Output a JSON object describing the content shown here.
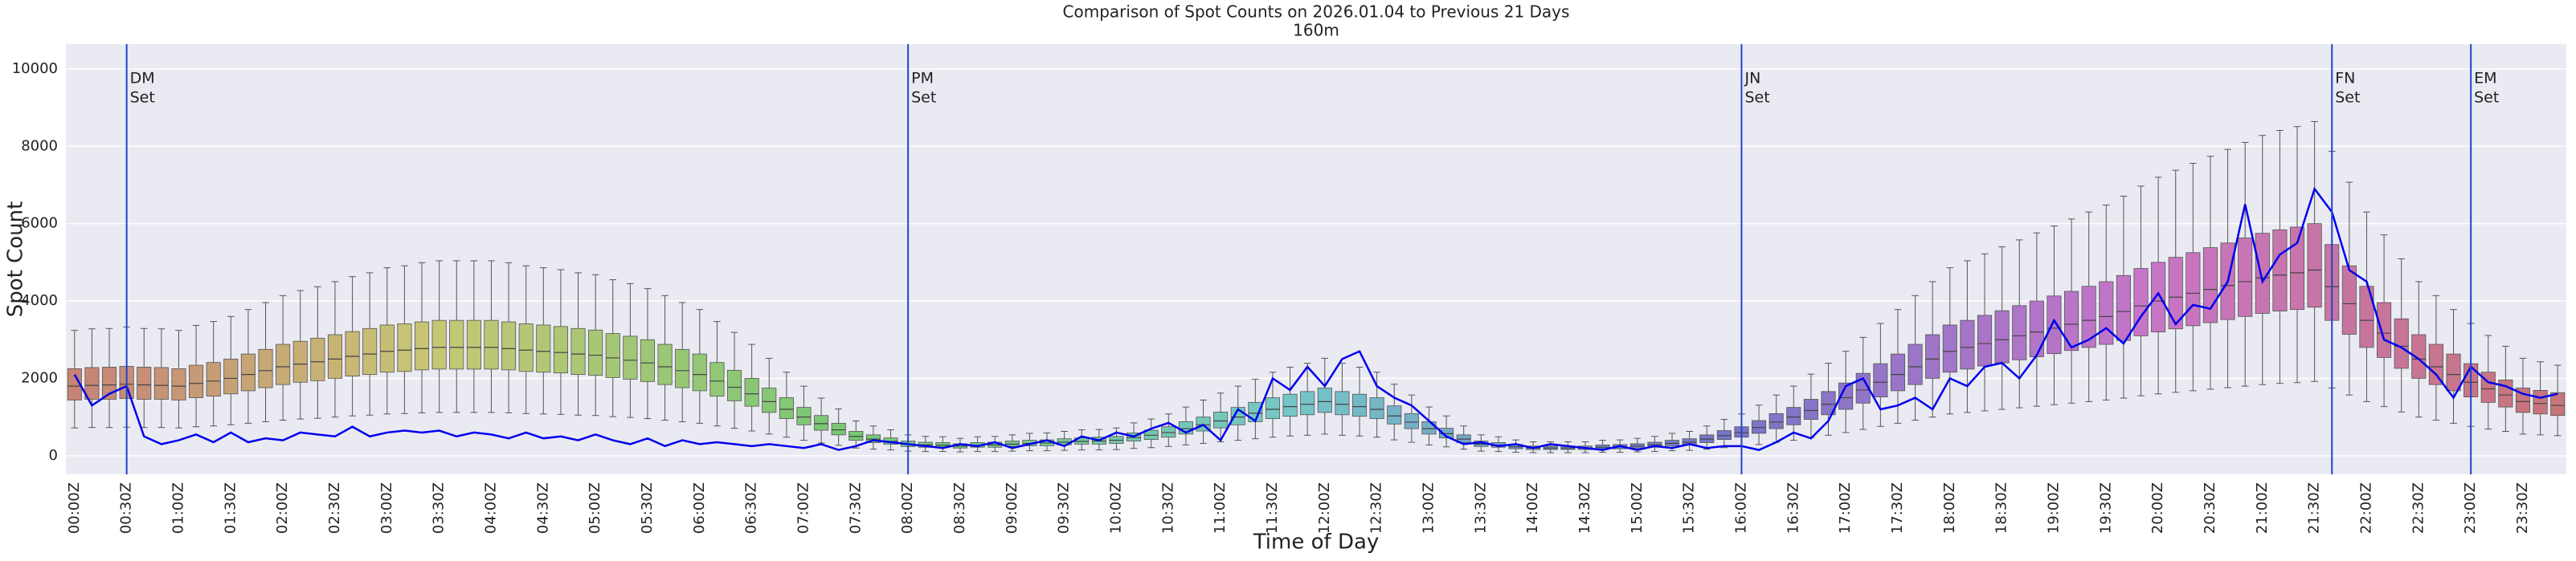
{
  "chart_data": {
    "type": "boxplot",
    "title": "Comparison of Spot Counts on 2026.01.04 to Previous 21 Days",
    "subtitle": "160m",
    "xlabel": "Time of Day",
    "ylabel": "Spot Count",
    "categories": [
      "00:00Z",
      null,
      null,
      "00:30Z",
      null,
      null,
      "01:00Z",
      null,
      null,
      "01:30Z",
      null,
      null,
      "02:00Z",
      null,
      null,
      "02:30Z",
      null,
      null,
      "03:00Z",
      null,
      null,
      "03:30Z",
      null,
      null,
      "04:00Z",
      null,
      null,
      "04:30Z",
      null,
      null,
      "05:00Z",
      null,
      null,
      "05:30Z",
      null,
      null,
      "06:00Z",
      null,
      null,
      "06:30Z",
      null,
      null,
      "07:00Z",
      null,
      null,
      "07:30Z",
      null,
      null,
      "08:00Z",
      null,
      null,
      "08:30Z",
      null,
      null,
      "09:00Z",
      null,
      null,
      "09:30Z",
      null,
      null,
      "10:00Z",
      null,
      null,
      "10:30Z",
      null,
      null,
      "11:00Z",
      null,
      null,
      "11:30Z",
      null,
      null,
      "12:00Z",
      null,
      null,
      "12:30Z",
      null,
      null,
      "13:00Z",
      null,
      null,
      "13:30Z",
      null,
      null,
      "14:00Z",
      null,
      null,
      "14:30Z",
      null,
      null,
      "15:00Z",
      null,
      null,
      "15:30Z",
      null,
      null,
      "16:00Z",
      null,
      null,
      "16:30Z",
      null,
      null,
      "17:00Z",
      null,
      null,
      "17:30Z",
      null,
      null,
      "18:00Z",
      null,
      null,
      "18:30Z",
      null,
      null,
      "19:00Z",
      null,
      null,
      "19:30Z",
      null,
      null,
      "20:00Z",
      null,
      null,
      "20:30Z",
      null,
      null,
      "21:00Z",
      null,
      null,
      "21:30Z",
      null,
      null,
      "22:00Z",
      null,
      null,
      "22:30Z",
      null,
      null,
      "23:00Z",
      null,
      null,
      "23:30Z",
      null,
      null
    ],
    "boxes": {
      "whislo": [
        720,
        730,
        730,
        740,
        730,
        730,
        720,
        750,
        770,
        800,
        840,
        880,
        920,
        950,
        970,
        1000,
        1030,
        1050,
        1080,
        1090,
        1110,
        1120,
        1120,
        1120,
        1120,
        1110,
        1090,
        1080,
        1070,
        1050,
        1040,
        1010,
        990,
        960,
        920,
        880,
        840,
        770,
        710,
        640,
        560,
        480,
        400,
        330,
        270,
        200,
        170,
        150,
        120,
        110,
        110,
        100,
        110,
        110,
        120,
        130,
        130,
        140,
        150,
        150,
        160,
        190,
        210,
        240,
        280,
        320,
        360,
        400,
        440,
        480,
        510,
        530,
        560,
        530,
        510,
        480,
        410,
        350,
        280,
        230,
        170,
        120,
        110,
        90,
        80,
        80,
        80,
        80,
        90,
        90,
        100,
        110,
        130,
        140,
        170,
        210,
        240,
        290,
        350,
        400,
        470,
        530,
        600,
        680,
        760,
        840,
        920,
        1000,
        1080,
        1120,
        1160,
        1200,
        1240,
        1280,
        1320,
        1360,
        1400,
        1440,
        1490,
        1550,
        1600,
        1640,
        1680,
        1720,
        1760,
        1800,
        1840,
        1870,
        1890,
        1920,
        1750,
        1570,
        1400,
        1270,
        1130,
        1000,
        920,
        840,
        760,
        690,
        630,
        560,
        540,
        520
      ],
      "q1": [
        1440,
        1460,
        1460,
        1480,
        1460,
        1460,
        1440,
        1500,
        1540,
        1600,
        1680,
        1760,
        1840,
        1900,
        1940,
        2000,
        2060,
        2100,
        2160,
        2180,
        2220,
        2240,
        2240,
        2240,
        2240,
        2220,
        2180,
        2160,
        2140,
        2100,
        2080,
        2020,
        1980,
        1920,
        1840,
        1760,
        1680,
        1540,
        1420,
        1280,
        1120,
        960,
        800,
        660,
        540,
        400,
        340,
        300,
        240,
        220,
        220,
        200,
        220,
        220,
        240,
        260,
        260,
        280,
        300,
        300,
        320,
        380,
        420,
        480,
        560,
        640,
        720,
        800,
        880,
        960,
        1020,
        1060,
        1120,
        1060,
        1020,
        960,
        820,
        700,
        560,
        460,
        340,
        240,
        220,
        180,
        160,
        160,
        160,
        160,
        180,
        180,
        200,
        220,
        260,
        280,
        340,
        420,
        480,
        580,
        700,
        800,
        940,
        1060,
        1200,
        1360,
        1520,
        1680,
        1840,
        2000,
        2160,
        2240,
        2320,
        2400,
        2480,
        2560,
        2640,
        2720,
        2800,
        2880,
        2980,
        3100,
        3200,
        3280,
        3360,
        3440,
        3520,
        3600,
        3680,
        3740,
        3780,
        3840,
        3500,
        3140,
        2800,
        2540,
        2260,
        2000,
        1840,
        1680,
        1520,
        1380,
        1260,
        1120,
        1080,
        1040
      ],
      "median": [
        1800,
        1820,
        1830,
        1850,
        1830,
        1820,
        1800,
        1870,
        1930,
        2000,
        2100,
        2200,
        2300,
        2370,
        2430,
        2500,
        2570,
        2630,
        2700,
        2730,
        2770,
        2800,
        2800,
        2800,
        2800,
        2770,
        2730,
        2700,
        2670,
        2630,
        2600,
        2530,
        2470,
        2400,
        2300,
        2200,
        2100,
        1930,
        1770,
        1600,
        1400,
        1200,
        1000,
        830,
        670,
        500,
        430,
        370,
        300,
        280,
        270,
        250,
        270,
        280,
        300,
        320,
        330,
        350,
        370,
        380,
        400,
        470,
        530,
        600,
        700,
        800,
        900,
        1000,
        1100,
        1200,
        1270,
        1330,
        1400,
        1330,
        1270,
        1200,
        1030,
        870,
        700,
        570,
        430,
        300,
        270,
        230,
        200,
        200,
        200,
        200,
        220,
        230,
        250,
        280,
        320,
        350,
        430,
        520,
        600,
        730,
        870,
        1000,
        1170,
        1330,
        1500,
        1700,
        1900,
        2100,
        2300,
        2500,
        2700,
        2800,
        2900,
        3000,
        3100,
        3200,
        3300,
        3400,
        3500,
        3600,
        3730,
        3870,
        4000,
        4100,
        4200,
        4300,
        4400,
        4500,
        4600,
        4670,
        4730,
        4800,
        4370,
        3930,
        3500,
        3170,
        2830,
        2500,
        2300,
        2100,
        1900,
        1730,
        1570,
        1400,
        1350,
        1300
      ],
      "q3": [
        2250,
        2280,
        2290,
        2310,
        2290,
        2280,
        2250,
        2340,
        2410,
        2500,
        2630,
        2750,
        2880,
        2960,
        3040,
        3130,
        3210,
        3290,
        3380,
        3410,
        3460,
        3500,
        3500,
        3500,
        3500,
        3460,
        3410,
        3380,
        3340,
        3290,
        3250,
        3160,
        3090,
        3000,
        2880,
        2750,
        2630,
        2410,
        2210,
        2000,
        1750,
        1500,
        1250,
        1040,
        840,
        630,
        540,
        460,
        380,
        350,
        340,
        310,
        340,
        350,
        380,
        400,
        410,
        440,
        460,
        480,
        500,
        590,
        660,
        750,
        880,
        1000,
        1130,
        1250,
        1380,
        1500,
        1590,
        1660,
        1750,
        1660,
        1590,
        1500,
        1290,
        1090,
        880,
        710,
        540,
        380,
        340,
        290,
        250,
        250,
        250,
        250,
        280,
        290,
        310,
        350,
        400,
        440,
        540,
        650,
        750,
        910,
        1090,
        1250,
        1460,
        1660,
        1880,
        2130,
        2380,
        2630,
        2880,
        3130,
        3380,
        3500,
        3630,
        3750,
        3880,
        4000,
        4130,
        4250,
        4380,
        4500,
        4660,
        4840,
        5000,
        5130,
        5250,
        5380,
        5500,
        5630,
        5750,
        5840,
        5910,
        6000,
        5460,
        4910,
        4380,
        3960,
        3540,
        3130,
        2880,
        2630,
        2380,
        2160,
        1960,
        1750,
        1690,
        1630
      ],
      "whishi": [
        3240,
        3280,
        3290,
        3330,
        3290,
        3280,
        3240,
        3370,
        3470,
        3600,
        3780,
        3960,
        4140,
        4270,
        4370,
        4500,
        4630,
        4730,
        4860,
        4910,
        4990,
        5040,
        5040,
        5040,
        5040,
        4990,
        4910,
        4860,
        4810,
        4730,
        4680,
        4550,
        4450,
        4320,
        4140,
        3960,
        3780,
        3470,
        3190,
        2880,
        2520,
        2160,
        1800,
        1490,
        1210,
        900,
        770,
        670,
        540,
        500,
        490,
        450,
        490,
        500,
        540,
        580,
        590,
        630,
        670,
        680,
        720,
        850,
        950,
        1080,
        1260,
        1440,
        1620,
        1800,
        1980,
        2160,
        2290,
        2390,
        2520,
        2390,
        2290,
        2160,
        1850,
        1570,
        1260,
        1030,
        770,
        540,
        490,
        410,
        360,
        360,
        360,
        360,
        400,
        410,
        450,
        500,
        580,
        630,
        770,
        940,
        1080,
        1310,
        1570,
        1800,
        2110,
        2390,
        2700,
        3060,
        3420,
        3780,
        4140,
        4500,
        4860,
        5040,
        5220,
        5400,
        5580,
        5760,
        5940,
        6120,
        6300,
        6480,
        6710,
        6970,
        7200,
        7380,
        7560,
        7740,
        7920,
        8100,
        8280,
        8410,
        8510,
        8640,
        7870,
        7070,
        6300,
        5710,
        5090,
        4500,
        4140,
        3780,
        3420,
        3110,
        2830,
        2520,
        2430,
        2340
      ]
    },
    "palette": "husl",
    "line": {
      "color": "#0000ee",
      "values": [
        2100,
        1300,
        1600,
        1800,
        500,
        300,
        400,
        550,
        350,
        600,
        350,
        450,
        400,
        600,
        550,
        500,
        750,
        500,
        600,
        650,
        600,
        650,
        500,
        600,
        550,
        450,
        600,
        450,
        500,
        400,
        550,
        400,
        300,
        450,
        250,
        400,
        300,
        350,
        300,
        250,
        300,
        250,
        200,
        300,
        150,
        250,
        400,
        350,
        300,
        250,
        200,
        300,
        250,
        350,
        200,
        300,
        400,
        250,
        500,
        400,
        600,
        500,
        700,
        850,
        600,
        800,
        400,
        1200,
        900,
        2000,
        1700,
        2300,
        1800,
        2500,
        2700,
        1800,
        1500,
        1300,
        900,
        500,
        300,
        350,
        250,
        300,
        200,
        300,
        250,
        200,
        150,
        250,
        150,
        250,
        200,
        300,
        200,
        250,
        250,
        150,
        350,
        600,
        450,
        900,
        1800,
        2000,
        1200,
        1300,
        1500,
        1200,
        2000,
        1800,
        2300,
        2400,
        2000,
        2600,
        3500,
        2800,
        3000,
        3300,
        2900,
        3600,
        4200,
        3400,
        3900,
        3800,
        4500,
        6500,
        4500,
        5200,
        5500,
        6900,
        6300,
        4800,
        4500,
        3000,
        2800,
        2500,
        2100,
        1500,
        2300,
        1900,
        1800,
        1600,
        1500,
        1600
      ]
    },
    "vlines": [
      {
        "x": 3,
        "label": [
          "DM",
          "Set"
        ]
      },
      {
        "x": 48,
        "label": [
          "PM",
          "Set"
        ]
      },
      {
        "x": 96,
        "label": [
          "JN",
          "Set"
        ]
      },
      {
        "x": 130,
        "label": [
          "FN",
          "Set"
        ]
      },
      {
        "x": 138,
        "label": [
          "EM",
          "Set"
        ]
      }
    ],
    "vline_color": "#2244cc",
    "ylim": [
      -480,
      10640
    ],
    "yticks": [
      0,
      2000,
      4000,
      6000,
      8000,
      10000
    ],
    "grid": true
  }
}
